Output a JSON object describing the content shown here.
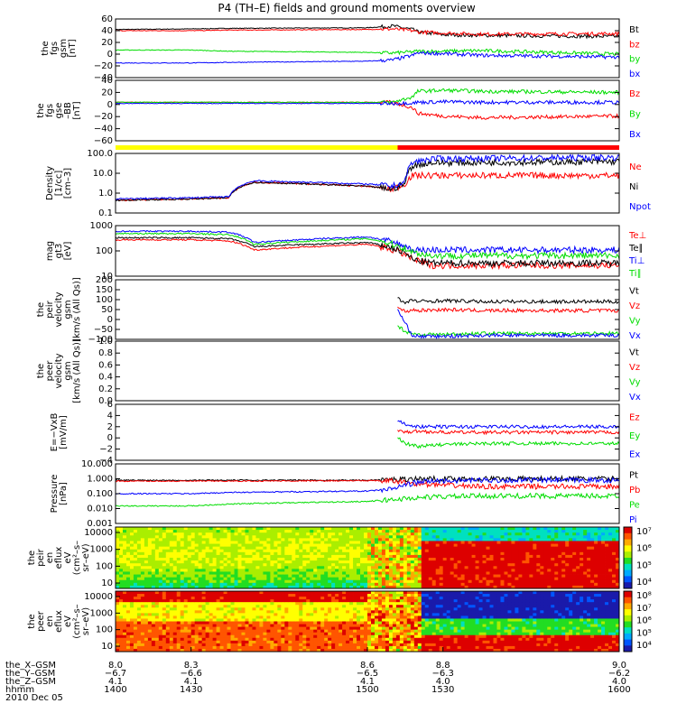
{
  "title": "P4 (TH–E) fields and ground moments overview",
  "date": "2010 Dec 05",
  "footer": {
    "labels": [
      "the_X–GSM",
      "the_Y–GSM",
      "the_Z–GSM",
      "hhmm"
    ],
    "rows": [
      [
        "8.0",
        "8.3",
        "8.6",
        "8.8",
        "9.0"
      ],
      [
        "−6.7",
        "−6.6",
        "−6.5",
        "−6.3",
        "−6.2"
      ],
      [
        "4.1",
        "4.1",
        "4.1",
        "4.0",
        "4.0"
      ],
      [
        "1400",
        "1430",
        "1500",
        "1530",
        "1600"
      ]
    ]
  },
  "colors": {
    "black": "#000000",
    "red": "#ff0000",
    "green": "#00dd00",
    "blue": "#0000ff",
    "yellow": "#ffff00"
  },
  "chart_data": [
    {
      "type": "line",
      "id": "fgs_gsm",
      "ylabel": [
        "the",
        "fgs",
        "gsm",
        "[nT]"
      ],
      "ylim": [
        -40,
        60
      ],
      "yticks": [
        "60",
        "40",
        "20",
        "0",
        "−20",
        "−40"
      ],
      "x": [
        1400,
        1430,
        1445,
        1500,
        1510,
        1518,
        1520,
        1530,
        1545,
        1600
      ],
      "series": [
        {
          "name": "Bt",
          "color": "#000000",
          "values": [
            42,
            43,
            44,
            45,
            48,
            42,
            38,
            33,
            32,
            30
          ]
        },
        {
          "name": "bz",
          "color": "#ff0000",
          "values": [
            40,
            40,
            41,
            42,
            43,
            40,
            38,
            36,
            34,
            35
          ]
        },
        {
          "name": "by",
          "color": "#00dd00",
          "values": [
            7,
            7,
            5,
            3,
            2,
            4,
            5,
            5,
            6,
            0
          ]
        },
        {
          "name": "bx",
          "color": "#0000ff",
          "values": [
            -15,
            -15,
            -14,
            -12,
            -10,
            -2,
            2,
            1,
            -2,
            -5
          ]
        }
      ]
    },
    {
      "type": "line",
      "id": "fgs_gse",
      "ylabel": [
        "the",
        "fgs",
        "gse",
        "–BB",
        "[nT]"
      ],
      "ylim": [
        -70,
        40
      ],
      "yticks": [
        "40",
        "20",
        "0",
        "−20",
        "−40",
        "−60"
      ],
      "x": [
        1400,
        1430,
        1445,
        1500,
        1510,
        1518,
        1520,
        1530,
        1545,
        1600
      ],
      "series": [
        {
          "name": "Bz",
          "color": "#ff0000",
          "values": [
            0,
            0,
            0,
            0,
            0,
            -10,
            -20,
            -25,
            -28,
            -25
          ]
        },
        {
          "name": "By",
          "color": "#00dd00",
          "values": [
            0,
            0,
            0,
            0,
            0,
            10,
            20,
            22,
            20,
            18
          ]
        },
        {
          "name": "Bx",
          "color": "#0000ff",
          "values": [
            -2,
            -2,
            -2,
            -2,
            -2,
            -1,
            0,
            1,
            0,
            0
          ]
        }
      ]
    },
    {
      "type": "line",
      "id": "density",
      "log": true,
      "ylabel": [
        "Density",
        "[1/cc]",
        "[cm–3]"
      ],
      "ylim": [
        0.1,
        200
      ],
      "yticks": [
        "100.0",
        "10.0",
        "1.0",
        "0.1"
      ],
      "x": [
        1400,
        1430,
        1445,
        1455,
        1500,
        1510,
        1515,
        1518,
        1525,
        1600
      ],
      "series": [
        {
          "name": "Ne",
          "color": "#ff0000",
          "values": [
            0.5,
            0.6,
            0.7,
            5,
            3,
            2,
            4,
            12,
            12,
            12
          ]
        },
        {
          "name": "Ni",
          "color": "#000000",
          "values": [
            0.5,
            0.6,
            0.7,
            5,
            3,
            2,
            4,
            40,
            60,
            70
          ]
        },
        {
          "name": "Npot",
          "color": "#0000ff",
          "values": [
            0.6,
            0.7,
            0.8,
            6,
            4,
            3,
            5,
            60,
            100,
            120
          ]
        }
      ]
    },
    {
      "type": "line",
      "id": "temperature",
      "log": true,
      "ylabel": [
        "mag",
        "gt3",
        "[eV]"
      ],
      "ylim": [
        8,
        4000
      ],
      "yticks": [
        "1000",
        "100",
        "10"
      ],
      "x": [
        1400,
        1430,
        1445,
        1455,
        1500,
        1510,
        1518,
        1525,
        1600
      ],
      "series": [
        {
          "name": "Te⊥",
          "color": "#ff0000",
          "values": [
            700,
            700,
            600,
            200,
            400,
            200,
            60,
            30,
            30
          ]
        },
        {
          "name": "Te∥",
          "color": "#000000",
          "values": [
            900,
            900,
            800,
            300,
            500,
            250,
            60,
            40,
            40
          ]
        },
        {
          "name": "Ti⊥",
          "color": "#0000ff",
          "values": [
            2000,
            2000,
            1800,
            500,
            1000,
            500,
            200,
            200,
            200
          ]
        },
        {
          "name": "Ti∥",
          "color": "#00dd00",
          "values": [
            1500,
            1500,
            1300,
            400,
            800,
            400,
            150,
            100,
            100
          ]
        }
      ]
    },
    {
      "type": "line",
      "id": "peir_velocity",
      "ylabel": [
        "the",
        "peir",
        "velocity",
        "gsm",
        "[km/s (All Qs)]"
      ],
      "ylim": [
        -100,
        200
      ],
      "yticks": [
        "200",
        "150",
        "100",
        "50",
        "0",
        "−50",
        "−100"
      ],
      "x": [
        1512,
        1515,
        1518,
        1520,
        1530,
        1545,
        1600
      ],
      "series": [
        {
          "name": "Vt",
          "color": "#000000",
          "values": [
            110,
            80,
            100,
            90,
            95,
            90,
            90
          ]
        },
        {
          "name": "Vz",
          "color": "#ff0000",
          "values": [
            60,
            40,
            50,
            45,
            50,
            45,
            45
          ]
        },
        {
          "name": "Vy",
          "color": "#00dd00",
          "values": [
            -30,
            -60,
            -70,
            -75,
            -75,
            -70,
            -70
          ]
        },
        {
          "name": "Vx",
          "color": "#0000ff",
          "values": [
            50,
            -20,
            -80,
            -85,
            -85,
            -80,
            -80
          ]
        }
      ]
    },
    {
      "type": "line",
      "id": "peer_velocity",
      "ylabel": [
        "the",
        "peer",
        "velocity",
        "gsm",
        "[km/s (All Qs)]"
      ],
      "ylim": [
        0,
        1
      ],
      "yticks": [
        "1.0",
        "0.8",
        "0.6",
        "0.4",
        "0.2",
        "0.0"
      ],
      "x": [],
      "series": [
        {
          "name": "Vt",
          "color": "#000000",
          "values": []
        },
        {
          "name": "Vz",
          "color": "#ff0000",
          "values": []
        },
        {
          "name": "Vy",
          "color": "#00dd00",
          "values": []
        },
        {
          "name": "Vx",
          "color": "#0000ff",
          "values": []
        }
      ]
    },
    {
      "type": "line",
      "id": "efield",
      "ylabel": [
        "E=−VxB",
        "[mV/m]"
      ],
      "ylim": [
        -4,
        6
      ],
      "yticks": [
        "6",
        "4",
        "2",
        "0",
        "−2",
        "−4"
      ],
      "x": [
        1512,
        1515,
        1520,
        1530,
        1545,
        1600
      ],
      "series": [
        {
          "name": "Ez",
          "color": "#ff0000",
          "values": [
            1.5,
            1.0,
            1.2,
            1.0,
            1.0,
            1.0
          ]
        },
        {
          "name": "Ey",
          "color": "#00dd00",
          "values": [
            0,
            -1,
            -1.5,
            -1.2,
            -1.0,
            -1.0
          ]
        },
        {
          "name": "Ex",
          "color": "#0000ff",
          "values": [
            3,
            2.5,
            2.0,
            2.0,
            2.0,
            2.0
          ]
        }
      ]
    },
    {
      "type": "line",
      "id": "pressure",
      "log": true,
      "ylabel": [
        "Pressure",
        "[nPa]"
      ],
      "ylim": [
        0.001,
        10
      ],
      "yticks": [
        "10.000",
        "1.000",
        "0.100",
        "0.010",
        "0.001"
      ],
      "x": [
        1400,
        1430,
        1445,
        1500,
        1510,
        1518,
        1525,
        1545,
        1600
      ],
      "series": [
        {
          "name": "Pt",
          "color": "#000000",
          "values": [
            0.8,
            0.8,
            0.8,
            0.8,
            0.9,
            1.0,
            1.0,
            1.0,
            1.0
          ]
        },
        {
          "name": "Pb",
          "color": "#ff0000",
          "values": [
            0.7,
            0.7,
            0.7,
            0.75,
            0.7,
            0.5,
            0.4,
            0.3,
            0.3
          ]
        },
        {
          "name": "Pe",
          "color": "#00dd00",
          "values": [
            0.015,
            0.015,
            0.02,
            0.03,
            0.04,
            0.05,
            0.06,
            0.07,
            0.07
          ]
        },
        {
          "name": "Pi",
          "color": "#0000ff",
          "values": [
            0.1,
            0.1,
            0.12,
            0.15,
            0.2,
            0.5,
            0.7,
            0.8,
            0.8
          ]
        }
      ]
    },
    {
      "type": "heatmap",
      "id": "peir_en_eflux",
      "ylabel": [
        "the",
        "peir",
        "en",
        "eflux",
        "eV",
        "(cm²–s–",
        "sr–eV)"
      ],
      "yticks": [
        "10000",
        "1000",
        "100",
        "10"
      ],
      "colorbar": [
        "10⁷",
        "10⁶",
        "10⁵",
        "10⁴"
      ]
    },
    {
      "type": "heatmap",
      "id": "peer_en_eflux",
      "ylabel": [
        "the",
        "peer",
        "en",
        "eflux",
        "eV",
        "(cm²–s–",
        "sr–eV)"
      ],
      "yticks": [
        "10000",
        "1000",
        "100",
        "10"
      ],
      "colorbar": [
        "10⁸",
        "10⁷",
        "10⁶",
        "10⁵",
        "10⁴"
      ]
    }
  ]
}
